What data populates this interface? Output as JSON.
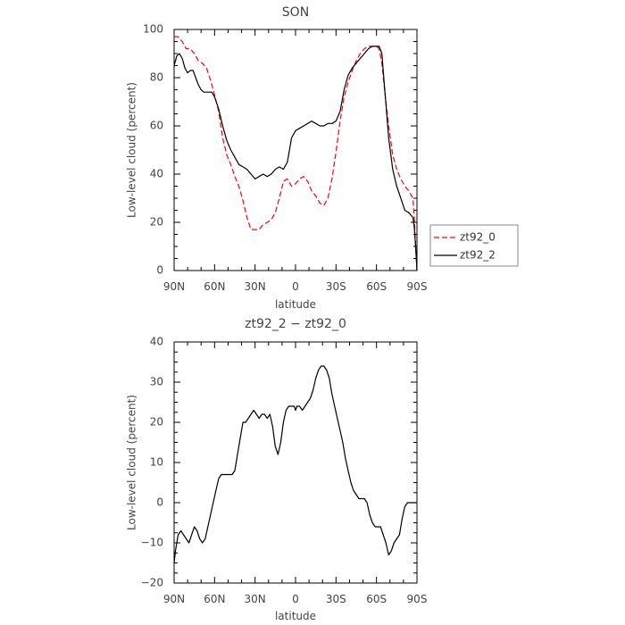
{
  "chart_data": [
    {
      "type": "line",
      "title": "SON",
      "xlabel": "latitude",
      "ylabel": "Low-level cloud (percent)",
      "xlim": [
        90,
        -90
      ],
      "ylim": [
        0,
        100
      ],
      "x_ticks": [
        90,
        60,
        30,
        0,
        -30,
        -60,
        -90
      ],
      "x_tick_labels": [
        "90N",
        "60N",
        "30N",
        "0",
        "30S",
        "60S",
        "90S"
      ],
      "y_ticks": [
        0,
        20,
        40,
        60,
        80,
        100
      ],
      "y_tick_labels": [
        "0",
        "20",
        "40",
        "60",
        "80",
        "100"
      ],
      "legend_position": "outside-right",
      "series": [
        {
          "name": "zt92_0",
          "color": "#ff0000",
          "dash": "dashed",
          "x": [
            90,
            87,
            84,
            81,
            78,
            75,
            72,
            69,
            66,
            63,
            60,
            57,
            54,
            51,
            48,
            45,
            42,
            39,
            36,
            33,
            30,
            27,
            24,
            21,
            18,
            15,
            12,
            9,
            6,
            3,
            0,
            -3,
            -6,
            -9,
            -12,
            -15,
            -18,
            -21,
            -24,
            -27,
            -30,
            -33,
            -36,
            -39,
            -42,
            -45,
            -48,
            -51,
            -54,
            -57,
            -60,
            -62,
            -64,
            -66,
            -69,
            -72,
            -75,
            -78,
            -81,
            -84,
            -87,
            -88,
            -89,
            -90
          ],
          "y": [
            97,
            97,
            95,
            92,
            92,
            90,
            87,
            86,
            84,
            79,
            73,
            66,
            55,
            48,
            44,
            39,
            35,
            29,
            22,
            17,
            17,
            17,
            19,
            20,
            21,
            24,
            30,
            37,
            38,
            35,
            36,
            38,
            39,
            37,
            33,
            31,
            28,
            27,
            30,
            38,
            49,
            62,
            72,
            78,
            83,
            87,
            90,
            92,
            93,
            93,
            93,
            92,
            86,
            75,
            60,
            48,
            42,
            38,
            35,
            33,
            30,
            22,
            10,
            0
          ]
        },
        {
          "name": "zt92_2",
          "color": "#000000",
          "dash": "solid",
          "x": [
            90,
            88,
            86,
            84,
            82,
            80,
            78,
            76,
            74,
            72,
            70,
            68,
            66,
            64,
            62,
            60,
            57,
            54,
            51,
            48,
            45,
            42,
            39,
            36,
            33,
            30,
            27,
            24,
            21,
            18,
            15,
            12,
            9,
            6,
            3,
            0,
            -3,
            -6,
            -9,
            -12,
            -15,
            -18,
            -21,
            -24,
            -27,
            -30,
            -33,
            -36,
            -39,
            -42,
            -45,
            -48,
            -51,
            -54,
            -57,
            -60,
            -62,
            -64,
            -66,
            -69,
            -72,
            -75,
            -78,
            -81,
            -84,
            -87,
            -88,
            -89,
            -90
          ],
          "y": [
            85,
            89,
            90,
            88,
            84,
            82,
            83,
            83,
            80,
            77,
            75,
            74,
            74,
            74,
            74,
            72,
            67,
            60,
            54,
            50,
            47,
            44,
            43,
            42,
            40,
            38,
            39,
            40,
            39,
            40,
            42,
            43,
            42,
            45,
            55,
            58,
            59,
            60,
            61,
            62,
            61,
            60,
            60,
            61,
            61,
            62,
            66,
            75,
            81,
            84,
            86,
            88,
            90,
            92,
            93,
            93,
            93,
            90,
            76,
            55,
            42,
            35,
            30,
            25,
            24,
            22,
            18,
            10,
            0
          ]
        }
      ]
    },
    {
      "type": "line",
      "title": "zt92_2 − zt92_0",
      "xlabel": "latitude",
      "ylabel": "Low-level cloud (percent)",
      "xlim": [
        90,
        -90
      ],
      "ylim": [
        -20,
        40
      ],
      "x_ticks": [
        90,
        60,
        30,
        0,
        -30,
        -60,
        -90
      ],
      "x_tick_labels": [
        "90N",
        "60N",
        "30N",
        "0",
        "30S",
        "60S",
        "90S"
      ],
      "y_ticks": [
        -20,
        -10,
        0,
        10,
        20,
        30,
        40
      ],
      "y_tick_labels": [
        "−20",
        "−10",
        "0",
        "10",
        "20",
        "30",
        "40"
      ],
      "series": [
        {
          "name": "",
          "color": "#000000",
          "dash": "solid",
          "x": [
            90,
            89,
            88,
            87,
            85,
            83,
            81,
            79,
            77,
            75,
            73,
            71,
            69,
            67,
            65,
            63,
            61,
            59,
            57,
            55,
            53,
            51,
            49,
            47,
            45,
            43,
            41,
            39,
            37,
            35,
            33,
            31,
            29,
            27,
            25,
            23,
            21,
            19,
            17,
            15,
            13,
            11,
            9,
            7,
            5,
            3,
            1,
            0,
            -1,
            -3,
            -5,
            -7,
            -9,
            -11,
            -13,
            -15,
            -17,
            -19,
            -21,
            -23,
            -25,
            -27,
            -29,
            -31,
            -33,
            -35,
            -37,
            -39,
            -41,
            -43,
            -45,
            -47,
            -49,
            -51,
            -53,
            -55,
            -57,
            -59,
            -61,
            -63,
            -65,
            -67,
            -69,
            -71,
            -73,
            -75,
            -77,
            -79,
            -81,
            -83,
            -85,
            -87,
            -88,
            -89,
            -90
          ],
          "y": [
            -15,
            -12,
            -10,
            -8,
            -7,
            -8,
            -9,
            -10,
            -8,
            -6,
            -7,
            -9,
            -10,
            -9,
            -6,
            -3,
            0,
            3,
            6,
            7,
            7,
            7,
            7,
            7,
            8,
            12,
            16,
            20,
            20,
            21,
            22,
            23,
            22,
            21,
            22,
            22,
            21,
            22,
            19,
            14,
            12,
            15,
            20,
            23,
            24,
            24,
            24,
            23,
            24,
            24,
            23,
            24,
            25,
            26,
            28,
            31,
            33,
            34,
            34,
            33,
            31,
            27,
            24,
            21,
            18,
            15,
            11,
            8,
            5,
            3,
            2,
            1,
            1,
            1,
            0,
            -3,
            -5,
            -6,
            -6,
            -6,
            -8,
            -10,
            -13,
            -12,
            -10,
            -9,
            -8,
            -4,
            -1,
            0,
            0,
            0,
            0,
            0,
            0
          ]
        }
      ]
    }
  ]
}
